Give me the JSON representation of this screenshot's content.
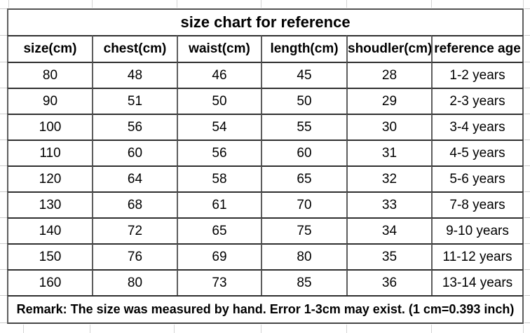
{
  "table": {
    "title": "size chart for reference",
    "columns": [
      "size(cm)",
      "chest(cm)",
      "waist(cm)",
      "length(cm)",
      "shoudler(cm)",
      "reference age"
    ],
    "rows": [
      [
        "80",
        "48",
        "46",
        "45",
        "28",
        "1-2 years"
      ],
      [
        "90",
        "51",
        "50",
        "50",
        "29",
        "2-3 years"
      ],
      [
        "100",
        "56",
        "54",
        "55",
        "30",
        "3-4 years"
      ],
      [
        "110",
        "60",
        "56",
        "60",
        "31",
        "4-5 years"
      ],
      [
        "120",
        "64",
        "58",
        "65",
        "32",
        "5-6 years"
      ],
      [
        "130",
        "68",
        "61",
        "70",
        "33",
        "7-8 years"
      ],
      [
        "140",
        "72",
        "65",
        "75",
        "34",
        "9-10 years"
      ],
      [
        "150",
        "76",
        "69",
        "80",
        "35",
        "11-12 years"
      ],
      [
        "160",
        "80",
        "73",
        "85",
        "36",
        "13-14 years"
      ]
    ],
    "remark": "Remark: The size was measured by hand. Error 1-3cm may exist. (1 cm=0.393 inch)"
  },
  "colors": {
    "background": "#ffffff",
    "text": "#000000",
    "horizontal_rule": "#2f2f2f",
    "vertical_rule": "#5e5e5e",
    "faint_gridline": "#d4d4d4"
  }
}
